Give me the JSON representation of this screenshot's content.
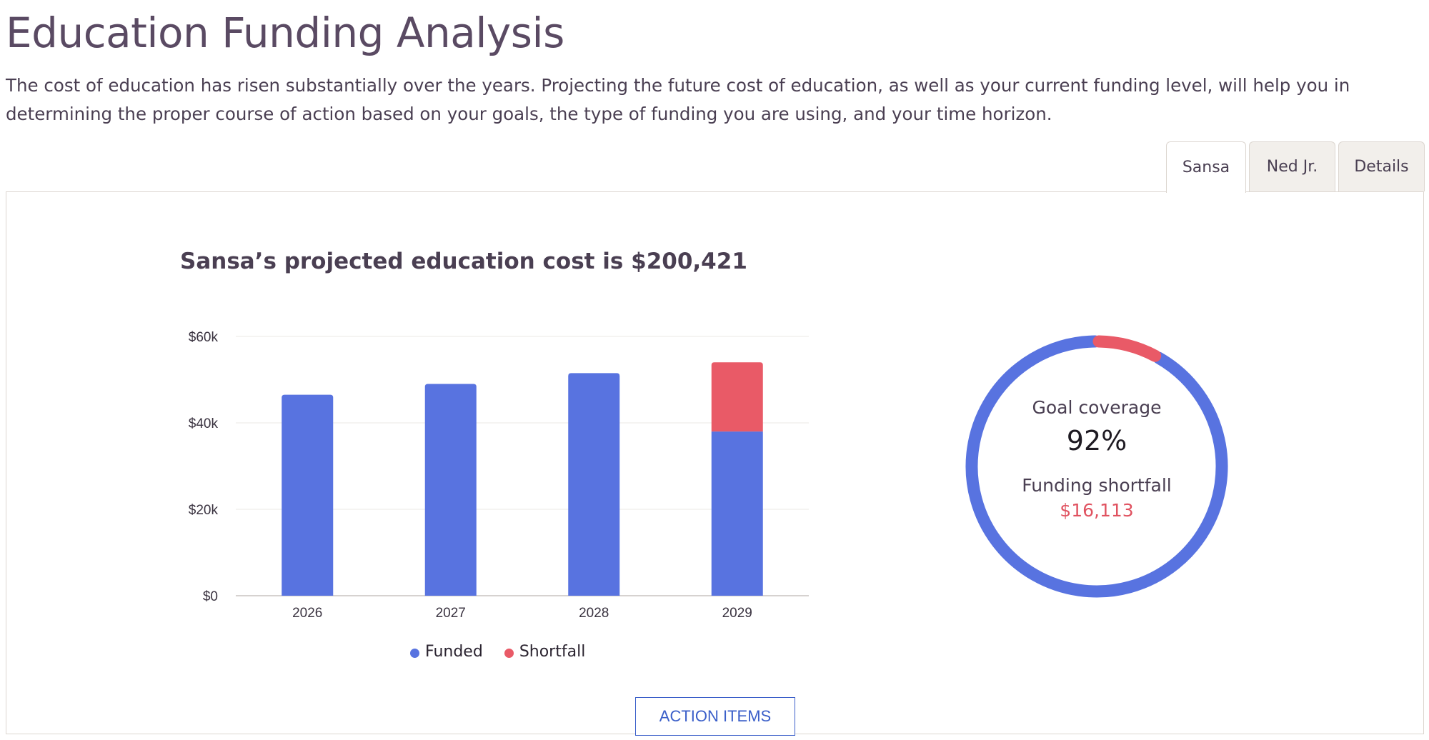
{
  "page": {
    "title": "Education Funding Analysis",
    "intro": "The cost of education has risen substantially over the years. Projecting the future cost of education, as well as your current funding level, will help you in determining the proper course of action based on your goals, the type of funding you are using, and your time horizon."
  },
  "tabs": [
    {
      "label": "Sansa",
      "active": true
    },
    {
      "label": "Ned Jr.",
      "active": false
    },
    {
      "label": "Details",
      "active": false
    }
  ],
  "panel": {
    "heading": "Sansa’s projected education cost is $200,421",
    "coverage_label": "Goal coverage",
    "coverage_value": "92%",
    "coverage_fraction": 0.92,
    "shortfall_label": "Funding shortfall",
    "shortfall_value": "$16,113",
    "action_button": "ACTION ITEMS"
  },
  "colors": {
    "funded": "#5873e0",
    "shortfall": "#e95a67"
  },
  "chart_data": {
    "type": "bar",
    "stacked": true,
    "categories": [
      "2026",
      "2027",
      "2028",
      "2029"
    ],
    "series": [
      {
        "name": "Funded",
        "values": [
          46500,
          49000,
          51500,
          38000
        ]
      },
      {
        "name": "Shortfall",
        "values": [
          0,
          0,
          0,
          16000
        ]
      }
    ],
    "y_ticks": [
      "$0",
      "$20k",
      "$40k",
      "$60k"
    ],
    "ylim": [
      0,
      60000
    ],
    "grid": true,
    "legend": "bottom"
  }
}
